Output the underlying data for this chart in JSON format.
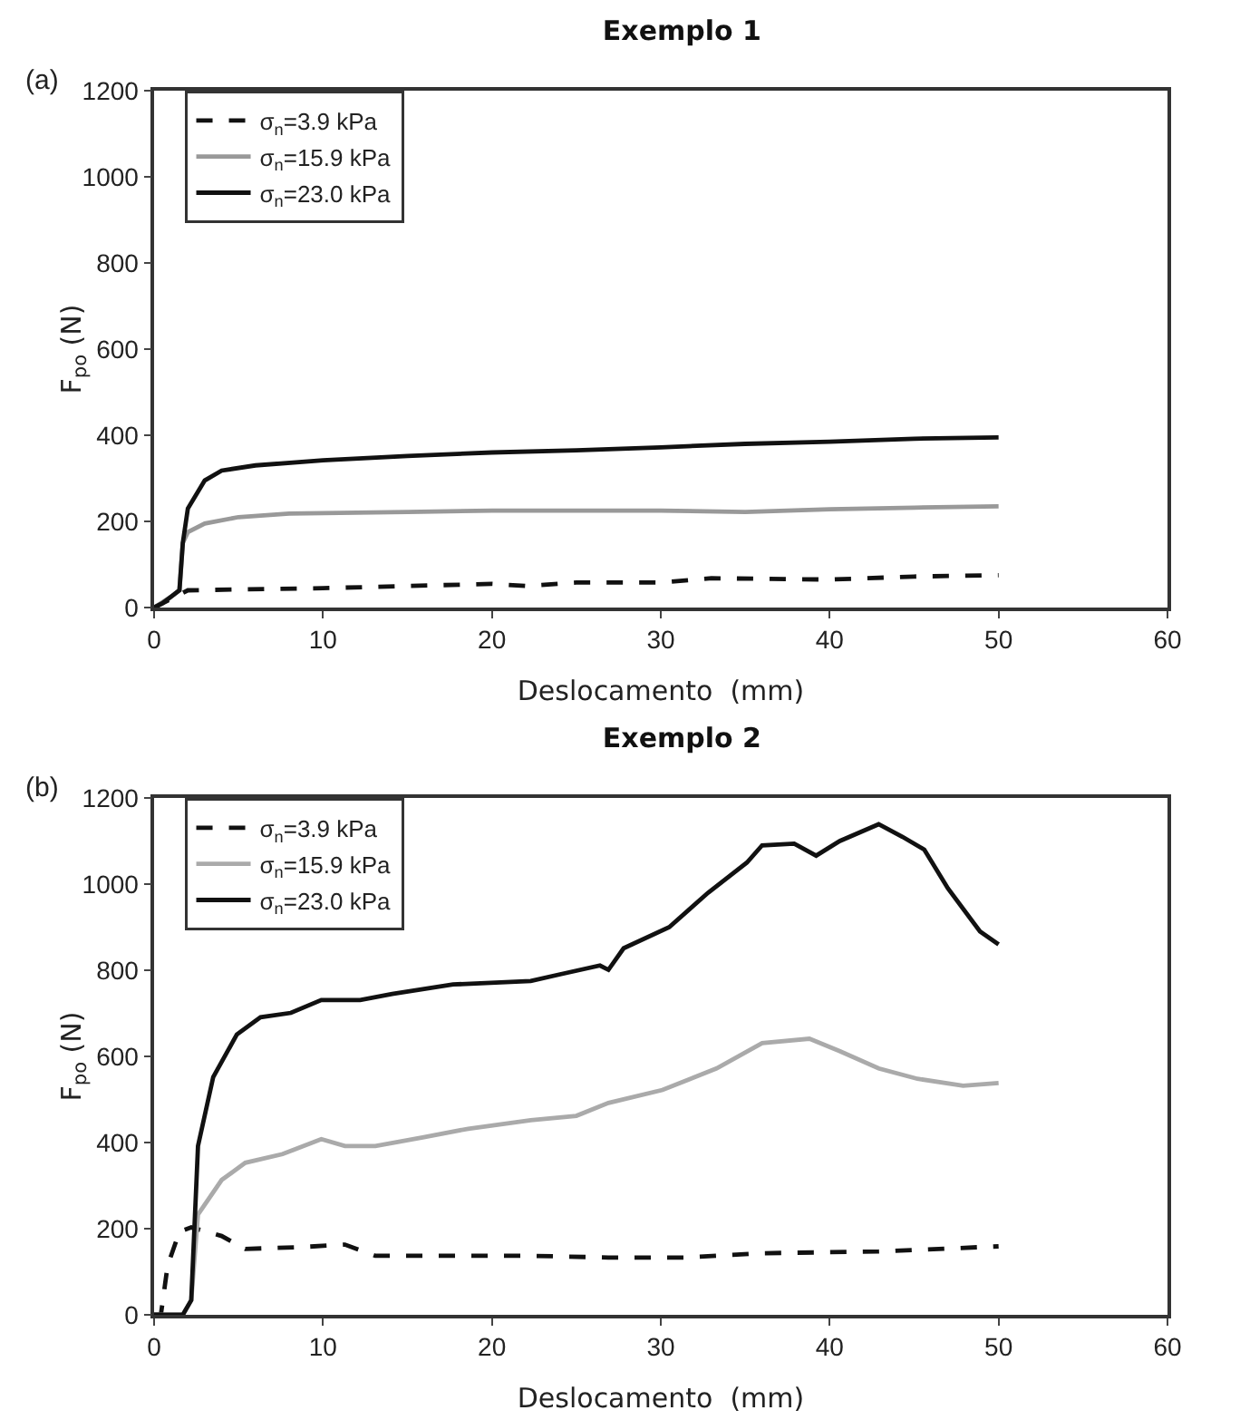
{
  "chart_data": [
    {
      "type": "line",
      "title": "Exemplo 1",
      "annotations": [
        "(a)"
      ],
      "xlabel": "Deslocamento  (mm)",
      "ylabel": "F$_{po}$ (N)",
      "xlim": [
        0,
        60
      ],
      "xticks": [
        0,
        10,
        20,
        30,
        40,
        50,
        60
      ],
      "ylim": [
        0,
        1200
      ],
      "yticks": [
        0,
        200,
        400,
        600,
        800,
        1000,
        1200
      ],
      "grid": false,
      "legend": "top left",
      "marker": "none",
      "series": [
        {
          "name": "σ$_{n}$=3.9 kPa",
          "color": "#111111",
          "line_style": "dashed",
          "x": [
            0,
            1,
            2,
            5,
            10,
            15,
            20,
            22,
            25,
            30,
            33,
            40,
            45,
            50
          ],
          "values": [
            0,
            20,
            40,
            42,
            45,
            50,
            55,
            50,
            58,
            58,
            68,
            65,
            72,
            75
          ]
        },
        {
          "name": "σ$_{n}$=15.9 kPa",
          "color": "#999999",
          "line_style": "solid",
          "x": [
            0,
            1,
            1.5,
            1.7,
            2,
            3,
            5,
            8,
            15,
            20,
            30,
            35,
            40,
            45,
            50
          ],
          "values": [
            0,
            25,
            40,
            150,
            175,
            195,
            210,
            218,
            222,
            225,
            225,
            222,
            228,
            232,
            235
          ]
        },
        {
          "name": "σ$_{n}$=23.0 kPa",
          "color": "#111111",
          "line_style": "solid",
          "x": [
            0,
            0.5,
            1,
            1.5,
            1.7,
            2,
            3,
            4,
            6,
            10,
            15,
            20,
            25,
            30,
            35,
            40,
            45,
            50
          ],
          "values": [
            0,
            10,
            25,
            40,
            150,
            230,
            295,
            318,
            330,
            342,
            352,
            360,
            365,
            372,
            380,
            385,
            392,
            395
          ]
        }
      ]
    },
    {
      "type": "line",
      "title": "Exemplo 2",
      "annotations": [
        "(b)"
      ],
      "xlabel": "Deslocamento  (mm)",
      "ylabel": "F$_{po}$ (N)",
      "xlim": [
        0,
        60
      ],
      "xticks": [
        0,
        10,
        20,
        30,
        40,
        50,
        60
      ],
      "ylim": [
        0,
        1200
      ],
      "yticks": [
        0,
        200,
        400,
        600,
        800,
        1000,
        1200
      ],
      "grid": false,
      "legend": "top left",
      "marker": "none",
      "series": [
        {
          "name": "σ$_{n}$=3.9 kPa",
          "color": "#111111",
          "line_style": "dashed",
          "x": [
            0,
            0.4,
            0.8,
            1.5,
            2.2,
            4,
            5.4,
            8.6,
            11.3,
            13.1,
            17.7,
            22.3,
            26.9,
            31.5,
            36,
            42.9,
            50
          ],
          "values": [
            0,
            0,
            114,
            193,
            203,
            183,
            153,
            157,
            163,
            137,
            137,
            137,
            133,
            133,
            143,
            147,
            159
          ]
        },
        {
          "name": "σ$_{n}$=15.9 kPa",
          "color": "#aaaaaa",
          "line_style": "solid",
          "x": [
            0,
            1.7,
            2.2,
            2.6,
            4,
            5.4,
            7.6,
            9.9,
            11.3,
            13.1,
            15.9,
            18.6,
            22.3,
            25,
            26.9,
            30.1,
            33.3,
            36,
            38.8,
            40.6,
            42.9,
            45.2,
            47.9,
            50
          ],
          "values": [
            0,
            0,
            34,
            233,
            313,
            353,
            373,
            408,
            392,
            392,
            412,
            432,
            452,
            462,
            492,
            522,
            572,
            631,
            641,
            612,
            572,
            548,
            532,
            538
          ]
        },
        {
          "name": "σ$_{n}$=23.0 kPa",
          "color": "#111111",
          "line_style": "solid",
          "x": [
            0,
            1.7,
            2.2,
            2.6,
            3.5,
            4.9,
            6.3,
            8.1,
            9.9,
            12.2,
            14.1,
            17.7,
            22.3,
            24.1,
            26.4,
            26.9,
            27.8,
            30.5,
            32.8,
            35.1,
            36,
            37.9,
            39.2,
            40.6,
            42.9,
            44.3,
            45.6,
            47,
            48.9,
            50
          ],
          "values": [
            0,
            0,
            34,
            392,
            552,
            651,
            691,
            701,
            731,
            731,
            745,
            767,
            775,
            791,
            811,
            801,
            851,
            900,
            980,
            1050,
            1090,
            1094,
            1066,
            1100,
            1139,
            1110,
            1080,
            990,
            890,
            860
          ]
        }
      ]
    }
  ]
}
